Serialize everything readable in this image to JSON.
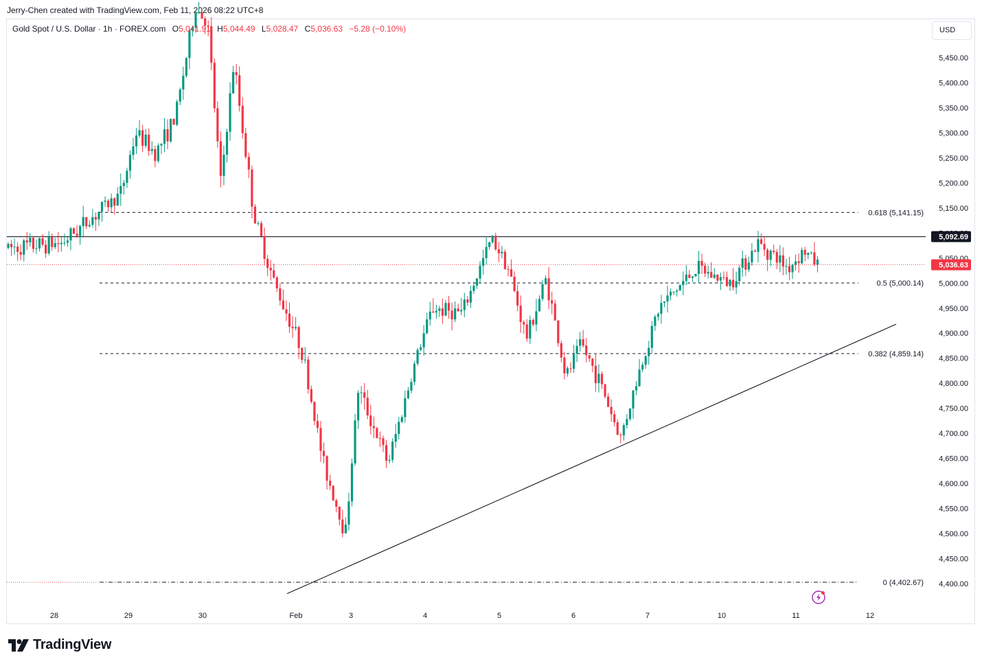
{
  "header": {
    "credit": "Jerry-Chen created with TradingView.com, Feb 11, 2026 08:22 UTC+8"
  },
  "legend": {
    "symbol": "Gold Spot / U.S. Dollar · 1h · FOREX.com",
    "o_label": "O",
    "o_value": "5,041.91",
    "h_label": "H",
    "h_value": "5,044.49",
    "l_label": "L",
    "l_value": "5,028.47",
    "c_label": "C",
    "c_value": "5,036.63",
    "change": "−5.28 (−0.10%)"
  },
  "currency": "USD",
  "brand": {
    "name": "TradingView"
  },
  "colors": {
    "up": "#089981",
    "down": "#f23645",
    "text": "#131722",
    "grid": "#e0e3eb",
    "price_badge": "#f23645",
    "level_badge": "#131722"
  },
  "chart_data": {
    "type": "candlestick",
    "timeframe": "1h",
    "x_ticks": [
      "28",
      "29",
      "30",
      "Feb",
      "3",
      "4",
      "5",
      "6",
      "7",
      "10",
      "11",
      "12"
    ],
    "y_ticks": [
      "4,400.00",
      "4,450.00",
      "4,500.00",
      "4,550.00",
      "4,600.00",
      "4,650.00",
      "4,700.00",
      "4,750.00",
      "4,800.00",
      "4,850.00",
      "4,900.00",
      "4,950.00",
      "5,000.00",
      "5,050.00",
      "5,100.00",
      "5,150.00",
      "5,200.00",
      "5,250.00",
      "5,300.00",
      "5,350.00",
      "5,400.00",
      "5,450.00"
    ],
    "y_range": [
      4380,
      5500
    ],
    "current_price": {
      "value": 5036.63,
      "label": "5,036.63"
    },
    "horizontal_level": {
      "value": 5092.69,
      "label": "5,092.69"
    },
    "fibonacci": [
      {
        "ratio": "0.618",
        "value": 5141.15,
        "label": "0.618 (5,141.15)"
      },
      {
        "ratio": "0.5",
        "value": 5000.14,
        "label": "0.5 (5,000.14)"
      },
      {
        "ratio": "0.382",
        "value": 4859.14,
        "label": "0.382 (4,859.14)"
      },
      {
        "ratio": "0",
        "value": 4402.67,
        "label": "0 (4,402.67)"
      }
    ],
    "trendline": {
      "from": {
        "date": "Feb 1",
        "price": 4380
      },
      "to": {
        "date": "Feb 12",
        "price": 4918
      }
    },
    "price_path": [
      {
        "date": "Jan 27",
        "price": 5070
      },
      {
        "date": "Jan 28",
        "price": 5080
      },
      {
        "date": "Jan 28",
        "price": 5180
      },
      {
        "date": "Jan 29",
        "price": 5300
      },
      {
        "date": "Jan 29",
        "price": 5260
      },
      {
        "date": "Jan 29",
        "price": 5330
      },
      {
        "date": "Jan 29",
        "price": 5550
      },
      {
        "date": "Jan 30",
        "price": 5520
      },
      {
        "date": "Jan 30",
        "price": 5200
      },
      {
        "date": "Jan 30",
        "price": 5440
      },
      {
        "date": "Jan 30",
        "price": 5240
      },
      {
        "date": "Jan 31",
        "price": 5130
      },
      {
        "date": "Jan 31",
        "price": 5000
      },
      {
        "date": "Feb 2",
        "price": 4870
      },
      {
        "date": "Feb 2",
        "price": 4640
      },
      {
        "date": "Feb 2",
        "price": 4500
      },
      {
        "date": "Feb 3",
        "price": 4790
      },
      {
        "date": "Feb 3",
        "price": 4640
      },
      {
        "date": "Feb 3",
        "price": 4860
      },
      {
        "date": "Feb 4",
        "price": 4950
      },
      {
        "date": "Feb 4",
        "price": 4940
      },
      {
        "date": "Feb 4",
        "price": 5090
      },
      {
        "date": "Feb 5",
        "price": 5040
      },
      {
        "date": "Feb 5",
        "price": 4890
      },
      {
        "date": "Feb 5",
        "price": 5010
      },
      {
        "date": "Feb 5",
        "price": 4810
      },
      {
        "date": "Feb 6",
        "price": 4880
      },
      {
        "date": "Feb 6",
        "price": 4800
      },
      {
        "date": "Feb 6",
        "price": 4690
      },
      {
        "date": "Feb 6",
        "price": 4830
      },
      {
        "date": "Feb 7",
        "price": 4950
      },
      {
        "date": "Feb 9",
        "price": 5030
      },
      {
        "date": "Feb 10",
        "price": 5000
      },
      {
        "date": "Feb 10",
        "price": 5080
      },
      {
        "date": "Feb 10",
        "price": 5030
      },
      {
        "date": "Feb 11",
        "price": 5065
      },
      {
        "date": "Feb 11",
        "price": 5010
      },
      {
        "date": "Feb 11",
        "price": 5036.63
      }
    ]
  }
}
